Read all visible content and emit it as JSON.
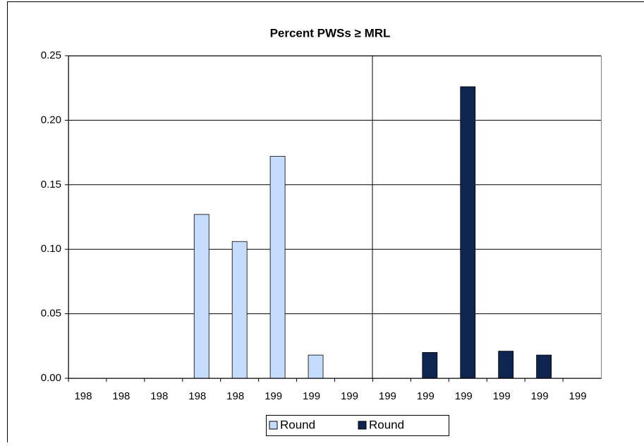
{
  "chart_data": {
    "type": "bar",
    "title": "Percent PWSs ≥ MRL",
    "categories": [
      "198",
      "198",
      "198",
      "198",
      "198",
      "199",
      "199",
      "199",
      "199",
      "199",
      "199",
      "199",
      "199",
      "199"
    ],
    "series": [
      {
        "name": "Round",
        "color": "#c6dcfc",
        "values": [
          null,
          null,
          null,
          0.127,
          0.106,
          0.172,
          0.018,
          null,
          null,
          null,
          null,
          null,
          null,
          null
        ]
      },
      {
        "name": "Round",
        "color": "#0e2550",
        "values": [
          null,
          null,
          null,
          null,
          null,
          null,
          null,
          null,
          null,
          0.02,
          0.226,
          0.021,
          0.018,
          null
        ]
      }
    ],
    "ylim": [
      0,
      0.25
    ],
    "yticks": [
      {
        "value": 0,
        "label": "0.00"
      },
      0.05,
      {
        "value": 0.1,
        "label": "0.10"
      },
      0.15,
      {
        "value": 0.2,
        "label": "0.20"
      },
      0.25
    ],
    "grid": true
  }
}
